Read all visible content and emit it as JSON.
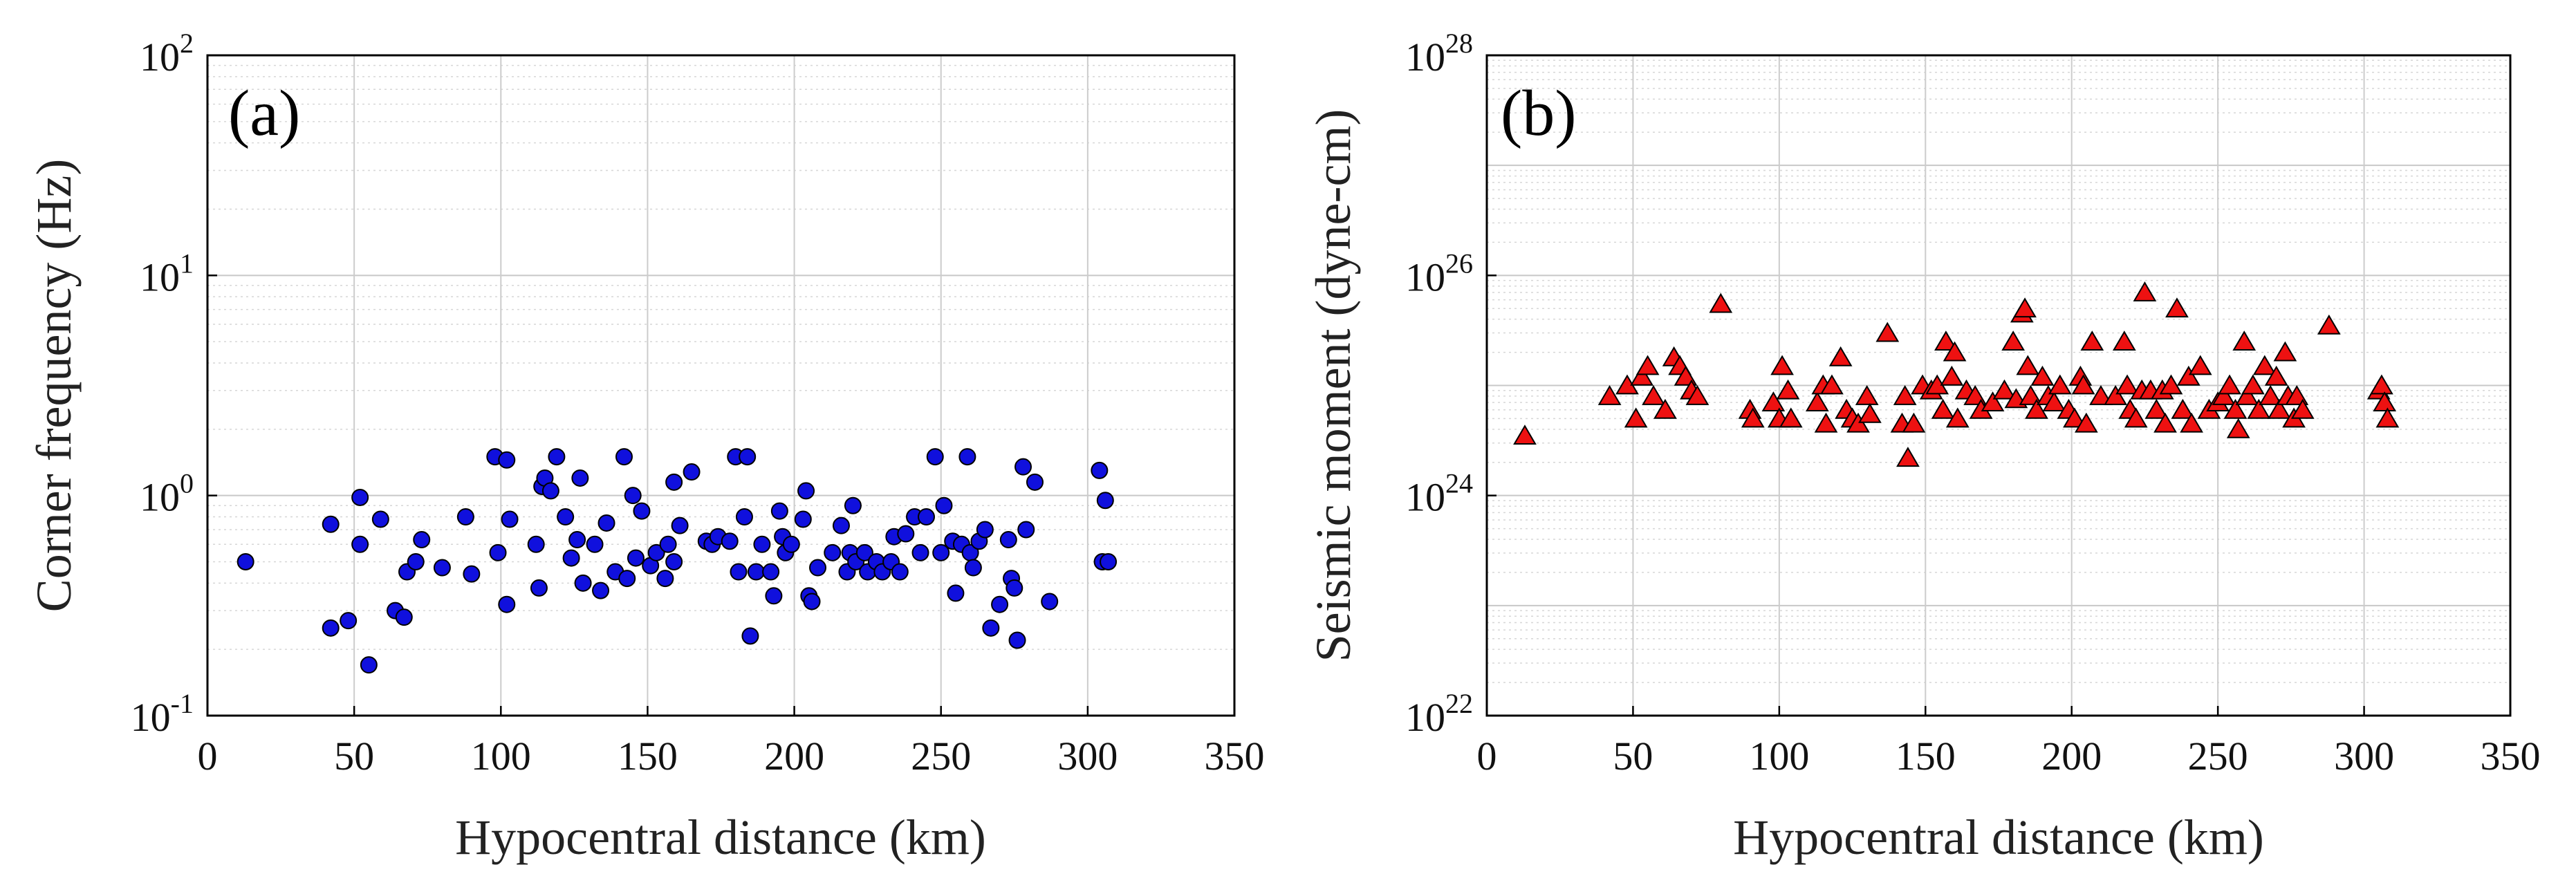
{
  "chart_data": [
    {
      "id": "a",
      "type": "scatter",
      "panel_label": "(a)",
      "xlabel": "Hypocentral distance (km)",
      "ylabel": "Corner frequency (Hz)",
      "xlim": [
        0,
        350
      ],
      "ylim": [
        0.1,
        100
      ],
      "yscale": "log",
      "xticks": [
        "0",
        "50",
        "100",
        "150",
        "200",
        "250",
        "300",
        "350"
      ],
      "yticks": [
        {
          "base": "10",
          "exp": "-1"
        },
        {
          "base": "10",
          "exp": "0"
        },
        {
          "base": "10",
          "exp": "1"
        },
        {
          "base": "10",
          "exp": "2"
        }
      ],
      "grid": true,
      "marker": {
        "shape": "circle",
        "fill": "#1010dd",
        "stroke": "#000000"
      },
      "points": [
        [
          13,
          0.5
        ],
        [
          42,
          0.74
        ],
        [
          42,
          0.25
        ],
        [
          48,
          0.27
        ],
        [
          52,
          0.98
        ],
        [
          52,
          0.6
        ],
        [
          55,
          0.17
        ],
        [
          59,
          0.78
        ],
        [
          64,
          0.3
        ],
        [
          67,
          0.28
        ],
        [
          68,
          0.45
        ],
        [
          71,
          0.5
        ],
        [
          73,
          0.63
        ],
        [
          80,
          0.47
        ],
        [
          88,
          0.8
        ],
        [
          90,
          0.44
        ],
        [
          98,
          1.5
        ],
        [
          99,
          0.55
        ],
        [
          102,
          1.45
        ],
        [
          102,
          0.32
        ],
        [
          103,
          0.78
        ],
        [
          112,
          0.6
        ],
        [
          113,
          0.38
        ],
        [
          114,
          1.1
        ],
        [
          115,
          1.2
        ],
        [
          117,
          1.05
        ],
        [
          119,
          1.5
        ],
        [
          122,
          0.8
        ],
        [
          124,
          0.52
        ],
        [
          126,
          0.63
        ],
        [
          127,
          1.2
        ],
        [
          128,
          0.4
        ],
        [
          132,
          0.6
        ],
        [
          134,
          0.37
        ],
        [
          136,
          0.75
        ],
        [
          139,
          0.45
        ],
        [
          142,
          1.5
        ],
        [
          143,
          0.42
        ],
        [
          145,
          1.0
        ],
        [
          146,
          0.52
        ],
        [
          148,
          0.85
        ],
        [
          151,
          0.48
        ],
        [
          153,
          0.55
        ],
        [
          156,
          0.42
        ],
        [
          157,
          0.6
        ],
        [
          159,
          1.15
        ],
        [
          159,
          0.5
        ],
        [
          161,
          0.73
        ],
        [
          165,
          1.28
        ],
        [
          170,
          0.62
        ],
        [
          172,
          0.6
        ],
        [
          174,
          0.65
        ],
        [
          178,
          0.62
        ],
        [
          180,
          1.5
        ],
        [
          181,
          0.45
        ],
        [
          183,
          0.8
        ],
        [
          184,
          1.5
        ],
        [
          185,
          0.23
        ],
        [
          187,
          0.45
        ],
        [
          189,
          0.6
        ],
        [
          192,
          0.45
        ],
        [
          193,
          0.35
        ],
        [
          195,
          0.85
        ],
        [
          196,
          0.65
        ],
        [
          197,
          0.55
        ],
        [
          199,
          0.6
        ],
        [
          203,
          0.78
        ],
        [
          204,
          1.05
        ],
        [
          205,
          0.35
        ],
        [
          206,
          0.33
        ],
        [
          208,
          0.47
        ],
        [
          213,
          0.55
        ],
        [
          216,
          0.73
        ],
        [
          218,
          0.45
        ],
        [
          219,
          0.55
        ],
        [
          220,
          0.9
        ],
        [
          221,
          0.5
        ],
        [
          224,
          0.55
        ],
        [
          225,
          0.45
        ],
        [
          228,
          0.5
        ],
        [
          230,
          0.45
        ],
        [
          233,
          0.5
        ],
        [
          234,
          0.65
        ],
        [
          236,
          0.45
        ],
        [
          238,
          0.67
        ],
        [
          241,
          0.8
        ],
        [
          243,
          0.55
        ],
        [
          245,
          0.8
        ],
        [
          248,
          1.5
        ],
        [
          250,
          0.55
        ],
        [
          251,
          0.9
        ],
        [
          254,
          0.62
        ],
        [
          255,
          0.36
        ],
        [
          257,
          0.6
        ],
        [
          259,
          1.5
        ],
        [
          260,
          0.55
        ],
        [
          261,
          0.47
        ],
        [
          263,
          0.62
        ],
        [
          265,
          0.7
        ],
        [
          267,
          0.25
        ],
        [
          270,
          0.32
        ],
        [
          273,
          0.63
        ],
        [
          274,
          0.42
        ],
        [
          275,
          0.38
        ],
        [
          276,
          0.22
        ],
        [
          278,
          1.35
        ],
        [
          279,
          0.7
        ],
        [
          282,
          1.15
        ],
        [
          287,
          0.33
        ],
        [
          304,
          1.3
        ],
        [
          305,
          0.5
        ],
        [
          306,
          0.95
        ],
        [
          307,
          0.5
        ]
      ]
    },
    {
      "id": "b",
      "type": "scatter",
      "panel_label": "(b)",
      "xlabel": "Hypocentral distance (km)",
      "ylabel": "Seismic moment (dyne-cm)",
      "xlim": [
        0,
        350
      ],
      "ylim": [
        1e+22,
        1e+28
      ],
      "yscale": "log",
      "xticks": [
        "0",
        "50",
        "100",
        "150",
        "200",
        "250",
        "300",
        "350"
      ],
      "yticks": [
        {
          "base": "10",
          "exp": "22"
        },
        {
          "base": "10",
          "exp": "24"
        },
        {
          "base": "10",
          "exp": "26"
        },
        {
          "base": "10",
          "exp": "28"
        }
      ],
      "grid": true,
      "marker": {
        "shape": "triangle",
        "fill": "#ee1111",
        "stroke": "#000000"
      },
      "points": [
        [
          13,
          3.5e+24
        ],
        [
          42,
          8e+24
        ],
        [
          48,
          1e+25
        ],
        [
          51,
          5e+24
        ],
        [
          53,
          1.2e+25
        ],
        [
          55,
          1.5e+25
        ],
        [
          57,
          8e+24
        ],
        [
          61,
          6e+24
        ],
        [
          64,
          1.8e+25
        ],
        [
          66,
          1.5e+25
        ],
        [
          68,
          1.2e+25
        ],
        [
          70,
          9e+24
        ],
        [
          72,
          8e+24
        ],
        [
          80,
          5.5e+25
        ],
        [
          90,
          6e+24
        ],
        [
          91,
          5e+24
        ],
        [
          98,
          7e+24
        ],
        [
          100,
          5e+24
        ],
        [
          101,
          1.5e+25
        ],
        [
          103,
          9e+24
        ],
        [
          104,
          5e+24
        ],
        [
          113,
          7e+24
        ],
        [
          115,
          1e+25
        ],
        [
          116,
          4.5e+24
        ],
        [
          118,
          1e+25
        ],
        [
          121,
          1.8e+25
        ],
        [
          123,
          6e+24
        ],
        [
          125,
          5e+24
        ],
        [
          127,
          4.5e+24
        ],
        [
          130,
          8e+24
        ],
        [
          131,
          5.5e+24
        ],
        [
          137,
          3e+25
        ],
        [
          142,
          4.5e+24
        ],
        [
          143,
          8e+24
        ],
        [
          144,
          2.2e+24
        ],
        [
          146,
          4.5e+24
        ],
        [
          149,
          1e+25
        ],
        [
          152,
          9e+24
        ],
        [
          154,
          1e+25
        ],
        [
          156,
          6e+24
        ],
        [
          157,
          2.5e+25
        ],
        [
          159,
          1.2e+25
        ],
        [
          160,
          2e+25
        ],
        [
          161,
          5e+24
        ],
        [
          164,
          9e+24
        ],
        [
          167,
          8e+24
        ],
        [
          169,
          6e+24
        ],
        [
          173,
          7e+24
        ],
        [
          177,
          9e+24
        ],
        [
          180,
          2.5e+25
        ],
        [
          181,
          7.5e+24
        ],
        [
          183,
          4.5e+25
        ],
        [
          184,
          5e+25
        ],
        [
          185,
          1.5e+25
        ],
        [
          186,
          8e+24
        ],
        [
          188,
          6e+24
        ],
        [
          190,
          1.2e+25
        ],
        [
          192,
          8e+24
        ],
        [
          194,
          7e+24
        ],
        [
          196,
          1e+25
        ],
        [
          199,
          6e+24
        ],
        [
          201,
          5e+24
        ],
        [
          203,
          1.2e+25
        ],
        [
          204,
          1e+25
        ],
        [
          205,
          4.5e+24
        ],
        [
          207,
          2.5e+25
        ],
        [
          210,
          8e+24
        ],
        [
          215,
          8e+24
        ],
        [
          218,
          2.5e+25
        ],
        [
          219,
          1e+25
        ],
        [
          220,
          6e+24
        ],
        [
          222,
          5e+24
        ],
        [
          224,
          9e+24
        ],
        [
          225,
          7e+25
        ],
        [
          227,
          9e+24
        ],
        [
          229,
          6e+24
        ],
        [
          231,
          9e+24
        ],
        [
          232,
          4.5e+24
        ],
        [
          234,
          1e+25
        ],
        [
          236,
          5e+25
        ],
        [
          238,
          6e+24
        ],
        [
          240,
          1.2e+25
        ],
        [
          241,
          4.5e+24
        ],
        [
          244,
          1.5e+25
        ],
        [
          247,
          6e+24
        ],
        [
          250,
          7e+24
        ],
        [
          252,
          8e+24
        ],
        [
          254,
          1e+25
        ],
        [
          256,
          6e+24
        ],
        [
          257,
          4e+24
        ],
        [
          259,
          2.5e+25
        ],
        [
          260,
          8e+24
        ],
        [
          262,
          1e+25
        ],
        [
          264,
          6e+24
        ],
        [
          266,
          1.5e+25
        ],
        [
          268,
          8e+24
        ],
        [
          270,
          1.2e+25
        ],
        [
          271,
          6e+24
        ],
        [
          273,
          2e+25
        ],
        [
          274,
          8e+24
        ],
        [
          276,
          5e+24
        ],
        [
          277,
          8e+24
        ],
        [
          279,
          6e+24
        ],
        [
          288,
          3.5e+25
        ],
        [
          305,
          9e+24
        ],
        [
          306,
          1e+25
        ],
        [
          307,
          7e+24
        ],
        [
          308,
          5e+24
        ]
      ]
    }
  ]
}
